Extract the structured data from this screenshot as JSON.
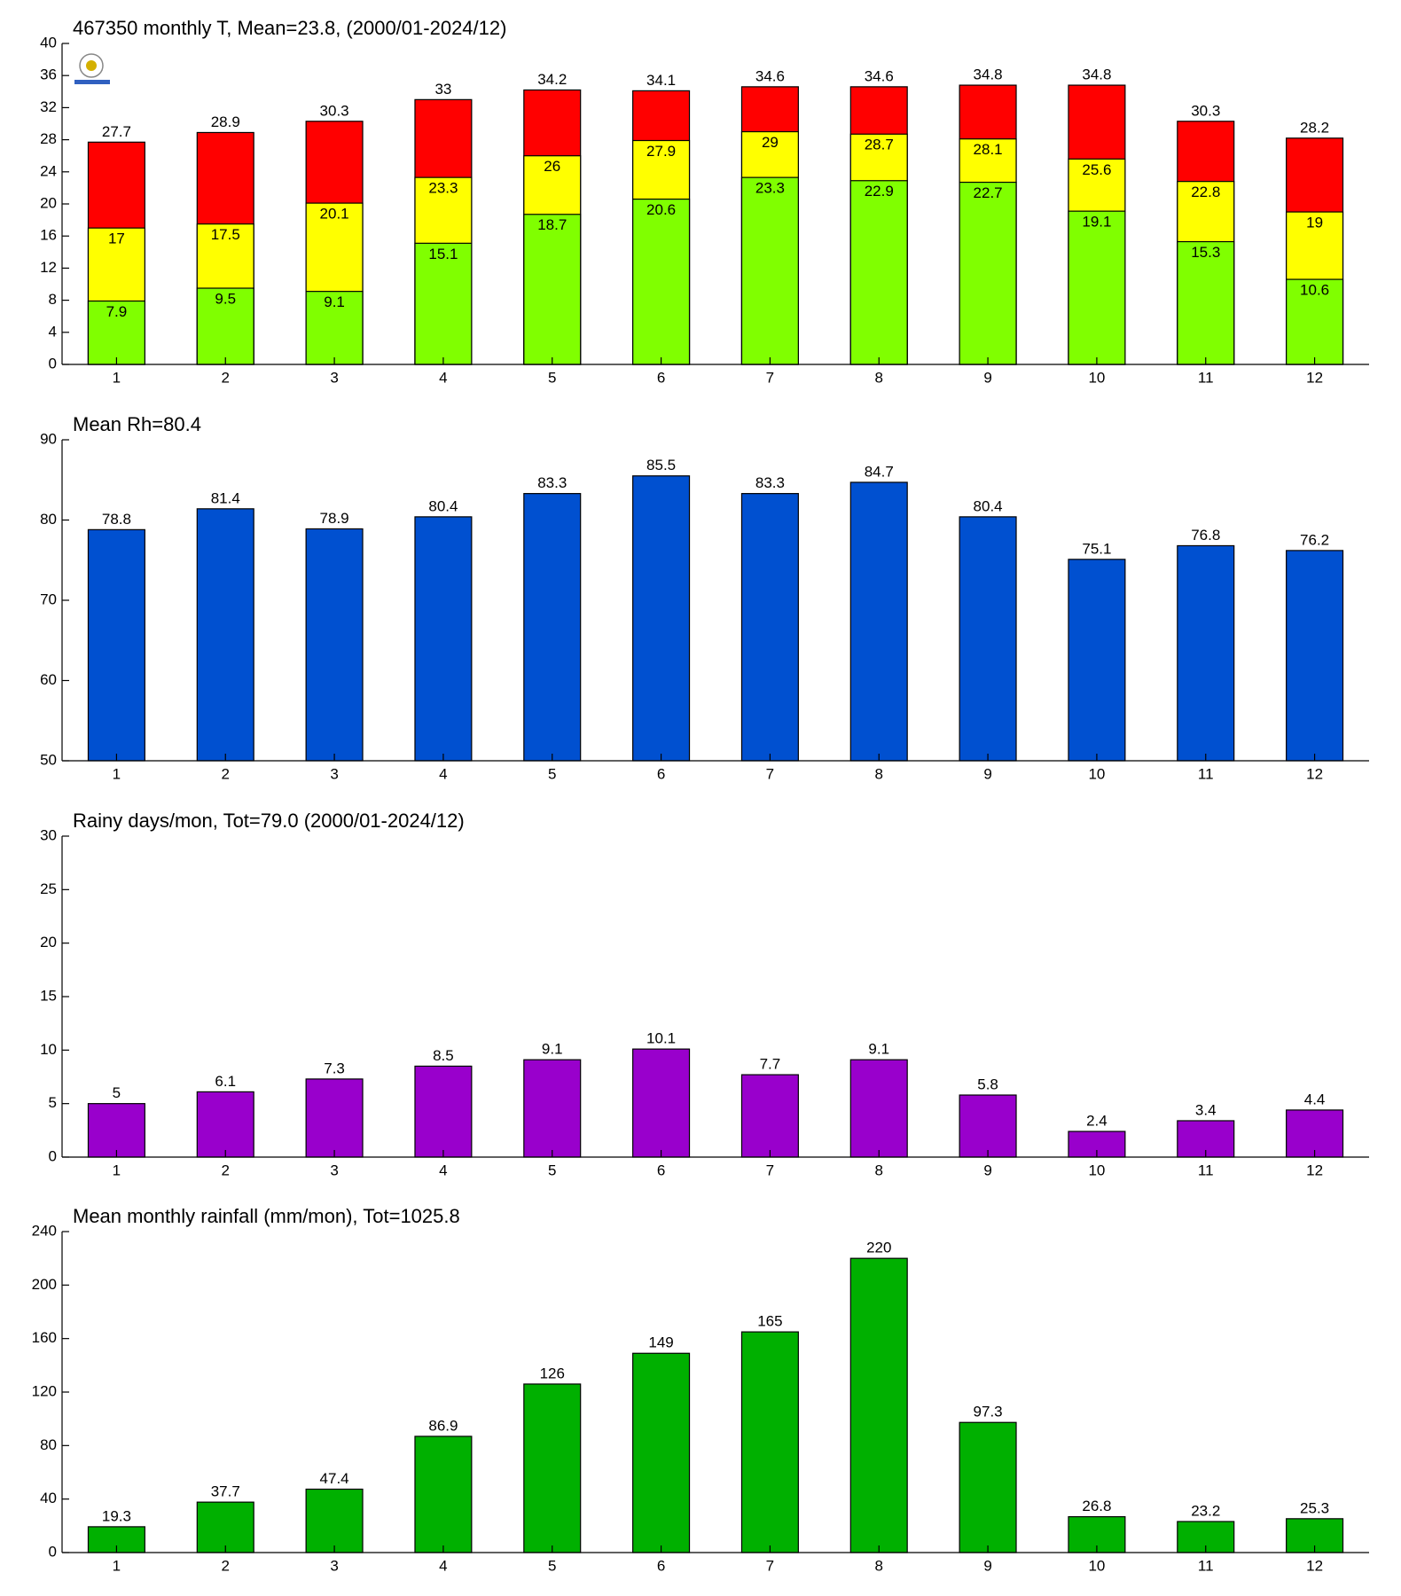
{
  "chart_data": [
    {
      "type": "overlay",
      "title": "467350 monthly T, Mean=23.8, (2000/01-2024/12)",
      "categories": [
        1,
        2,
        3,
        4,
        5,
        6,
        7,
        8,
        9,
        10,
        11,
        12
      ],
      "series": [
        {
          "color": "#ff0000",
          "values": [
            27.7,
            28.9,
            30.3,
            33,
            34.2,
            34.1,
            34.6,
            34.6,
            34.8,
            34.8,
            30.3,
            28.2
          ]
        },
        {
          "color": "#ffff00",
          "values": [
            17,
            17.5,
            20.1,
            23.3,
            26,
            27.9,
            29,
            28.7,
            28.1,
            25.6,
            22.8,
            19
          ]
        },
        {
          "color": "#80ff00",
          "values": [
            7.9,
            9.5,
            9.1,
            15.1,
            18.7,
            20.6,
            23.3,
            22.9,
            22.7,
            19.1,
            15.3,
            10.6
          ]
        }
      ],
      "ylim": [
        0,
        40
      ],
      "yticks": [
        0,
        4,
        8,
        12,
        16,
        20,
        24,
        28,
        32,
        36,
        40
      ]
    },
    {
      "type": "bar",
      "title": "Mean Rh=80.4",
      "categories": [
        1,
        2,
        3,
        4,
        5,
        6,
        7,
        8,
        9,
        10,
        11,
        12
      ],
      "values": [
        78.8,
        81.4,
        78.9,
        80.4,
        83.3,
        85.5,
        83.3,
        84.7,
        80.4,
        75.1,
        76.8,
        76.2
      ],
      "color": "#0050d0",
      "ylim": [
        50,
        90
      ],
      "yticks": [
        50,
        60,
        70,
        80,
        90
      ]
    },
    {
      "type": "bar",
      "title": "Rainy days/mon, Tot=79.0 (2000/01-2024/12)",
      "categories": [
        1,
        2,
        3,
        4,
        5,
        6,
        7,
        8,
        9,
        10,
        11,
        12
      ],
      "values": [
        5,
        6.1,
        7.3,
        8.5,
        9.1,
        10.1,
        7.7,
        9.1,
        5.8,
        2.4,
        3.4,
        4.4
      ],
      "color": "#9900cc",
      "ylim": [
        0,
        30
      ],
      "yticks": [
        0,
        5,
        10,
        15,
        20,
        25,
        30
      ]
    },
    {
      "type": "bar",
      "title": "Mean monthly rainfall (mm/mon), Tot=1025.8",
      "categories": [
        1,
        2,
        3,
        4,
        5,
        6,
        7,
        8,
        9,
        10,
        11,
        12
      ],
      "values": [
        19.3,
        37.7,
        47.4,
        86.9,
        126,
        149,
        165,
        220,
        97.3,
        26.8,
        23.2,
        25.3
      ],
      "color": "#00b000",
      "ylim": [
        0,
        240
      ],
      "yticks": [
        0,
        40,
        80,
        120,
        160,
        200,
        240
      ]
    }
  ]
}
